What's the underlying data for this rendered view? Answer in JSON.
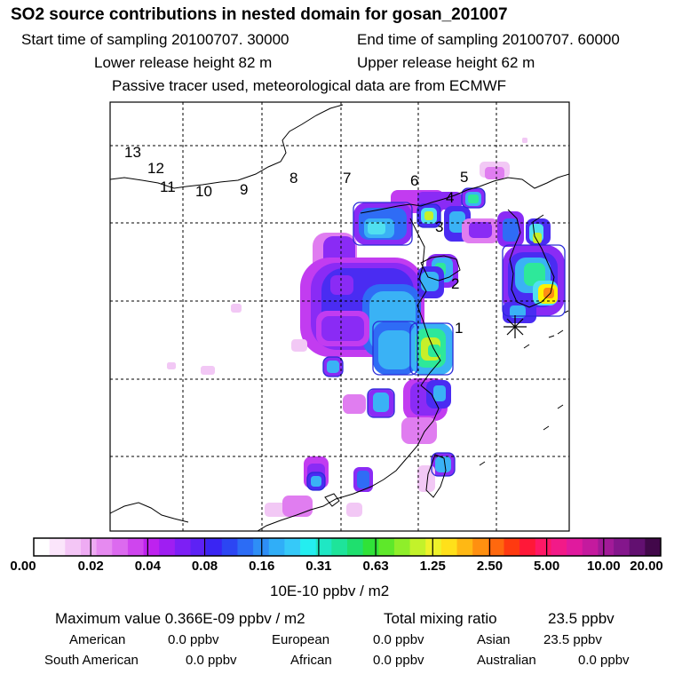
{
  "header": {
    "title": "SO2 source contributions in nested domain for gosan_201007",
    "start_label": "Start time of sampling 20100707. 30000",
    "end_label": "End time of sampling 20100707. 60000",
    "lower_label": "Lower release height   82 m",
    "upper_label": "Upper release height   62 m",
    "note": "Passive tracer used, meteorological data are from ECMWF"
  },
  "map": {
    "receptor_marker": "asterisk",
    "grid": true,
    "region_labels": [
      "1",
      "2",
      "3",
      "4",
      "5",
      "6",
      "7",
      "8",
      "9",
      "10",
      "11",
      "12",
      "13"
    ],
    "plume_colors": [
      "#f2c8f5",
      "#e07df0",
      "#c23cf0",
      "#8a2bf5",
      "#4a2cf2",
      "#2f6cf5",
      "#3ab2f5",
      "#50e0f0",
      "#2ee89a",
      "#c6ef2a",
      "#fff000",
      "#ff8c14"
    ]
  },
  "colorbar": {
    "labels": [
      "0.00",
      "0.02",
      "0.04",
      "0.08",
      "0.16",
      "0.31",
      "0.63",
      "1.25",
      "2.50",
      "5.00",
      "10.00",
      "20.00"
    ],
    "colors": [
      "#ffffff",
      "#fbe5fb",
      "#f4c6f6",
      "#eeabf3",
      "#e68af0",
      "#dc6aef",
      "#cf45ee",
      "#be22ef",
      "#9f1ef2",
      "#7d1ff5",
      "#5d22f5",
      "#3a25f3",
      "#2c46f3",
      "#2c6cf5",
      "#2e8ef6",
      "#30aef7",
      "#36c9f8",
      "#24eef0",
      "#1fe7c4",
      "#1ee49a",
      "#1fdf6e",
      "#30e238",
      "#5ee82a",
      "#8fee2a",
      "#c3f22a",
      "#eef22a",
      "#ffe01a",
      "#ffb814",
      "#ff9010",
      "#ff680e",
      "#ff3a10",
      "#ff1838",
      "#ff1866",
      "#f21a88",
      "#e01a9e",
      "#c41a9e",
      "#a21a98",
      "#84168c",
      "#621070",
      "#42084a"
    ],
    "unit": "10E-10 ppbv / m2"
  },
  "stats": {
    "max_label": "Maximum value  0.366E-09 ppbv / m2",
    "total_label": "Total mixing ratio",
    "total_value": "23.5 ppbv",
    "regions": [
      {
        "name": "American",
        "value": "0.0 ppbv"
      },
      {
        "name": "European",
        "value": "0.0 ppbv"
      },
      {
        "name": "Asian",
        "value": "23.5 ppbv"
      },
      {
        "name": "South American",
        "value": "0.0 ppbv"
      },
      {
        "name": "African",
        "value": "0.0 ppbv"
      },
      {
        "name": "Australian",
        "value": "0.0 ppbv"
      }
    ]
  }
}
